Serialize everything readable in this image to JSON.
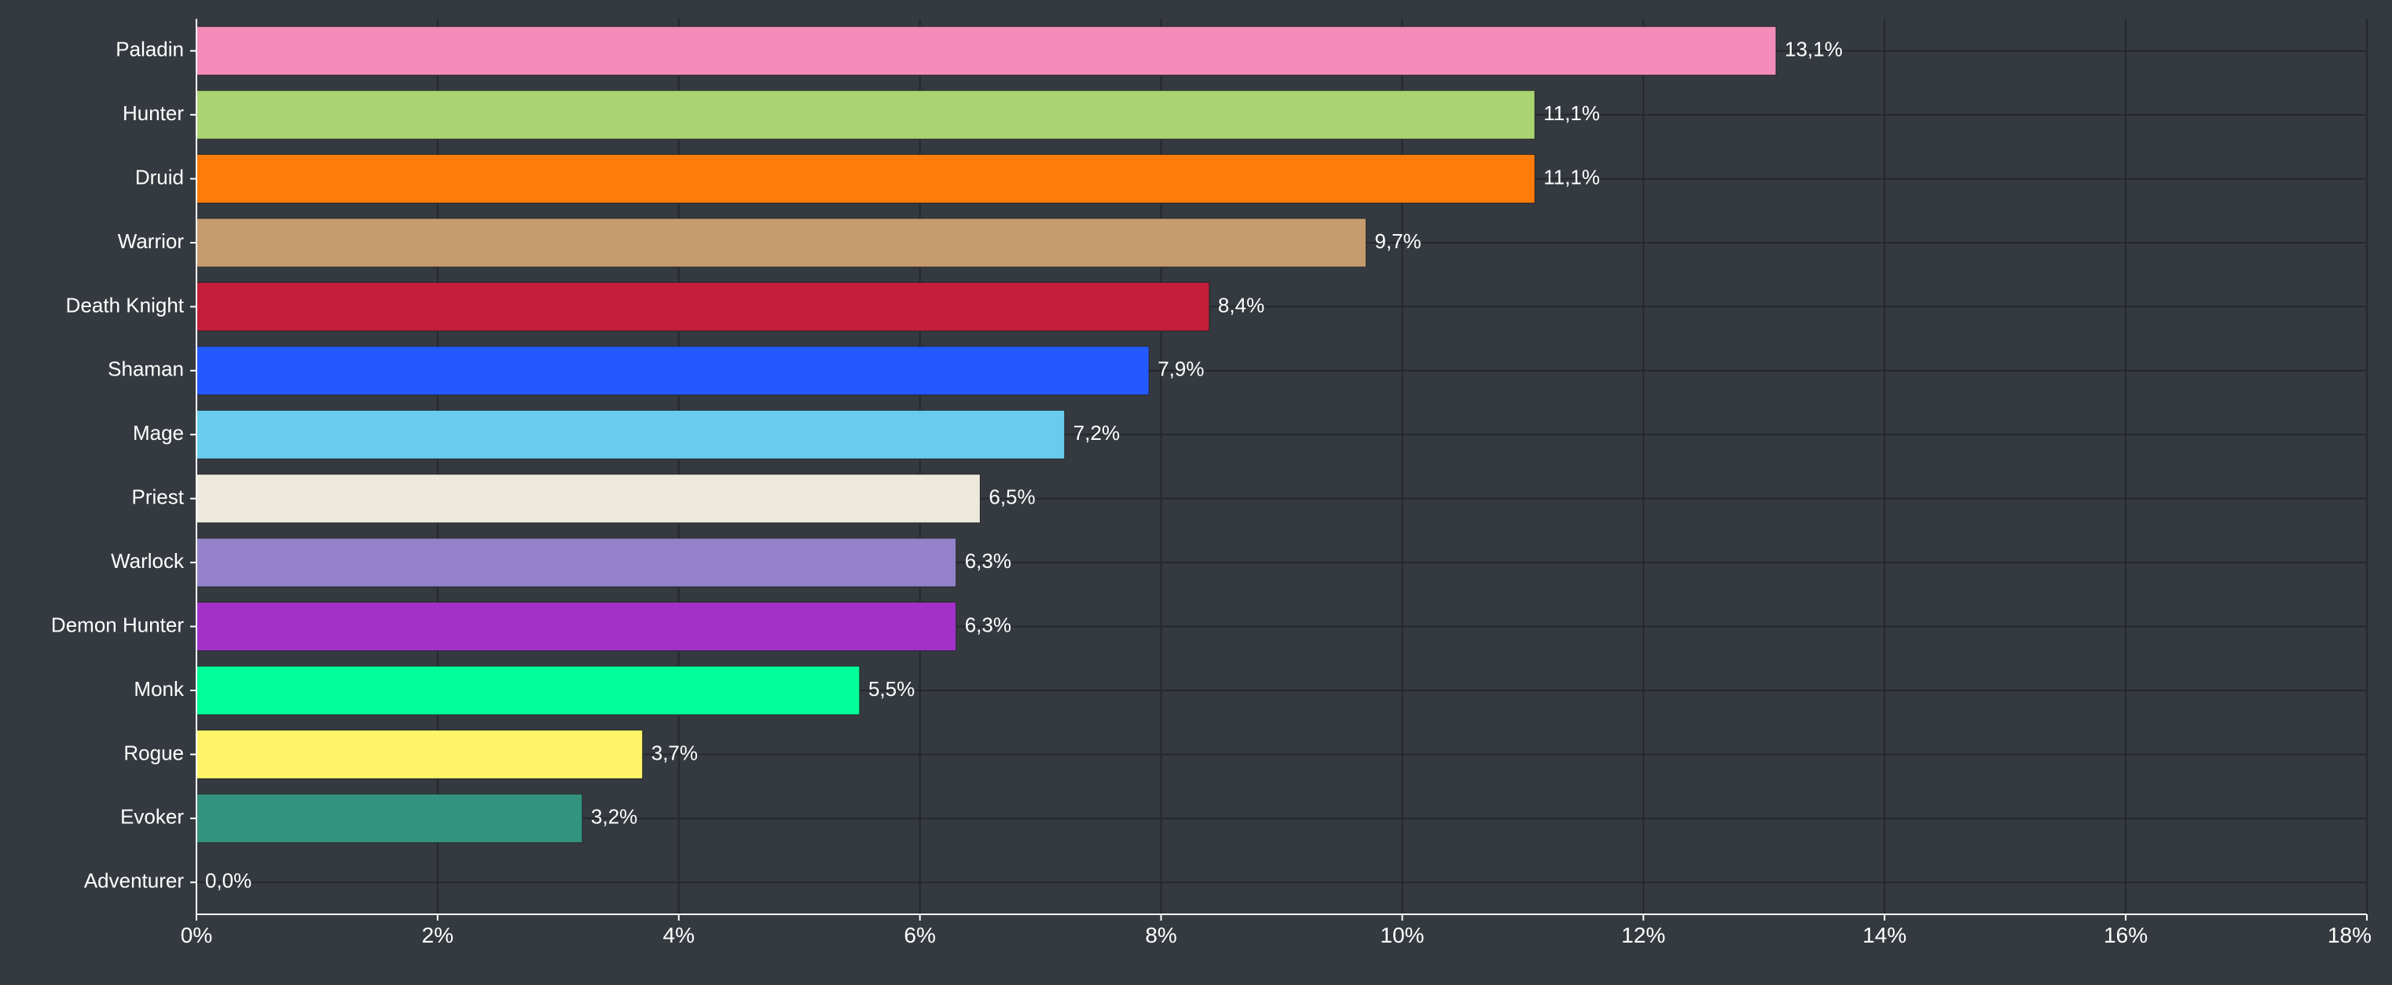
{
  "chart_data": {
    "type": "bar",
    "orientation": "horizontal",
    "categories": [
      "Paladin",
      "Hunter",
      "Druid",
      "Warrior",
      "Death Knight",
      "Shaman",
      "Mage",
      "Priest",
      "Warlock",
      "Demon Hunter",
      "Monk",
      "Rogue",
      "Evoker",
      "Adventurer"
    ],
    "values": [
      13.1,
      11.1,
      11.1,
      9.7,
      8.4,
      7.9,
      7.2,
      6.5,
      6.3,
      6.3,
      5.5,
      3.7,
      3.2,
      0.0
    ],
    "value_labels": [
      "13,1%",
      "11,1%",
      "11,1%",
      "9,7%",
      "8,4%",
      "7,9%",
      "7,2%",
      "6,5%",
      "6,3%",
      "6,3%",
      "5,5%",
      "3,7%",
      "3,2%",
      "0,0%"
    ],
    "colors": [
      "#f48cba",
      "#aad372",
      "#ff7c0a",
      "#c69b6d",
      "#c41e3a",
      "#2459ff",
      "#68ccef",
      "#ede9dd",
      "#9382c9",
      "#a330c9",
      "#00ff98",
      "#fff468",
      "#33937f",
      "#ffffff"
    ],
    "xlim": [
      0,
      18
    ],
    "xticks": [
      0,
      2,
      4,
      6,
      8,
      10,
      12,
      14,
      16,
      18
    ],
    "xtick_labels": [
      "0%",
      "2%",
      "4%",
      "6%",
      "8%",
      "10%",
      "12%",
      "14%",
      "16%",
      "18%"
    ],
    "grid": true,
    "title": "",
    "xlabel": "",
    "ylabel": ""
  }
}
